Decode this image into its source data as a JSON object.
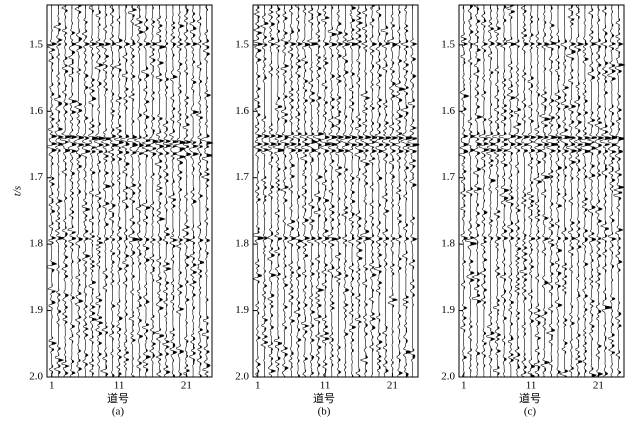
{
  "chart_data": [
    {
      "type": "wiggle",
      "ylabel": "t/s",
      "xlabel": "道号",
      "caption": "(a)",
      "xlim": [
        0.3,
        24.8
      ],
      "xticks": [
        1,
        11,
        21
      ],
      "ylim": [
        1.44,
        2.0
      ],
      "y_inverted": true,
      "yticks": [
        1.5,
        1.6,
        1.7,
        1.8,
        1.9,
        {
          "value": 2,
          "label": "2.0"
        }
      ]
    },
    {
      "type": "wiggle",
      "xlabel": "道号",
      "caption": "(b)",
      "xlim": [
        0.3,
        24.8
      ],
      "xticks": [
        1,
        11,
        21
      ],
      "ylim": [
        1.44,
        2.0
      ],
      "y_inverted": true,
      "yticks": [
        1.5,
        1.6,
        1.7,
        1.8,
        1.9,
        {
          "value": 2,
          "label": "2.0"
        }
      ]
    },
    {
      "type": "wiggle",
      "xlabel": "道号",
      "caption": "(c)",
      "xlim": [
        0.3,
        24.8
      ],
      "xticks": [
        1,
        11,
        21
      ],
      "ylim": [
        1.44,
        2.0
      ],
      "y_inverted": true,
      "yticks": [
        1.5,
        1.6,
        1.7,
        1.8,
        1.9,
        {
          "value": 2,
          "label": "2.0"
        }
      ]
    }
  ]
}
